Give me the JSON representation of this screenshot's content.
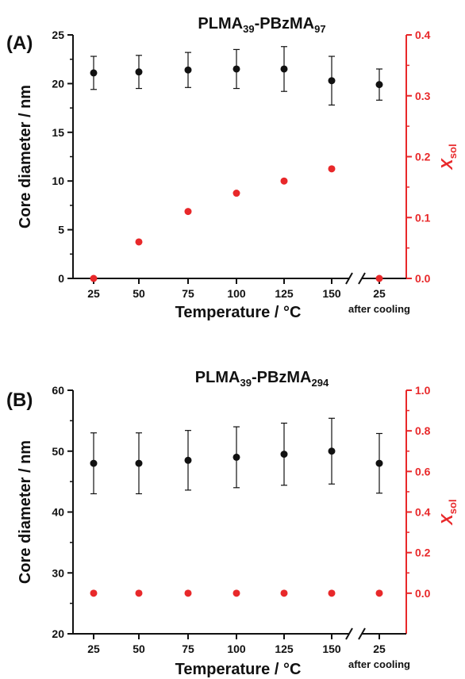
{
  "chart_data": [
    {
      "type": "scatter",
      "panel_label": "(A)",
      "title": {
        "main": "PLMA",
        "sub1": "39",
        "mid": "-PBzMA",
        "sub2": "97"
      },
      "xlabel": "Temperature / °C",
      "ylabel": "Core diameter / nm",
      "y2label": {
        "main": "X",
        "sub": "sol"
      },
      "categories": [
        "25",
        "50",
        "75",
        "100",
        "125",
        "150",
        "25"
      ],
      "after_label": "after cooling",
      "ylim": [
        0,
        25
      ],
      "yticks": [
        "0",
        "5",
        "10",
        "15",
        "20",
        "25"
      ],
      "y2lim": [
        0,
        0.4
      ],
      "y2ticks": [
        "0.0",
        "0.1",
        "0.2",
        "0.3",
        "0.4"
      ],
      "series": [
        {
          "axis": "left",
          "color": "#111111",
          "values": [
            21.1,
            21.2,
            21.4,
            21.5,
            21.5,
            20.3,
            19.9
          ],
          "errors": [
            1.7,
            1.7,
            1.8,
            2.0,
            2.3,
            2.5,
            1.6
          ]
        },
        {
          "axis": "right",
          "color": "#e8282a",
          "values": [
            0.0,
            0.06,
            0.11,
            0.14,
            0.16,
            0.18,
            0.0
          ]
        }
      ]
    },
    {
      "type": "scatter",
      "panel_label": "(B)",
      "title": {
        "main": "PLMA",
        "sub1": "39",
        "mid": "-PBzMA",
        "sub2": "294"
      },
      "xlabel": "Temperature / °C",
      "ylabel": "Core diameter / nm",
      "y2label": {
        "main": "X",
        "sub": "sol"
      },
      "categories": [
        "25",
        "50",
        "75",
        "100",
        "125",
        "150",
        "25"
      ],
      "after_label": "after cooling",
      "ylim": [
        20,
        60
      ],
      "yticks": [
        "20",
        "30",
        "40",
        "50",
        "60"
      ],
      "y2lim": [
        -0.2,
        1.0
      ],
      "y2ticks": [
        "0.0",
        "0.2",
        "0.4",
        "0.6",
        "0.8",
        "1.0"
      ],
      "series": [
        {
          "axis": "left",
          "color": "#111111",
          "values": [
            48.0,
            48.0,
            48.5,
            49.0,
            49.5,
            50.0,
            48.0
          ],
          "errors": [
            5.0,
            5.0,
            4.9,
            5.0,
            5.1,
            5.4,
            4.9
          ]
        },
        {
          "axis": "right",
          "color": "#e8282a",
          "values": [
            0.0,
            0.0,
            0.0,
            0.0,
            0.0,
            0.0,
            0.0
          ]
        }
      ]
    }
  ]
}
